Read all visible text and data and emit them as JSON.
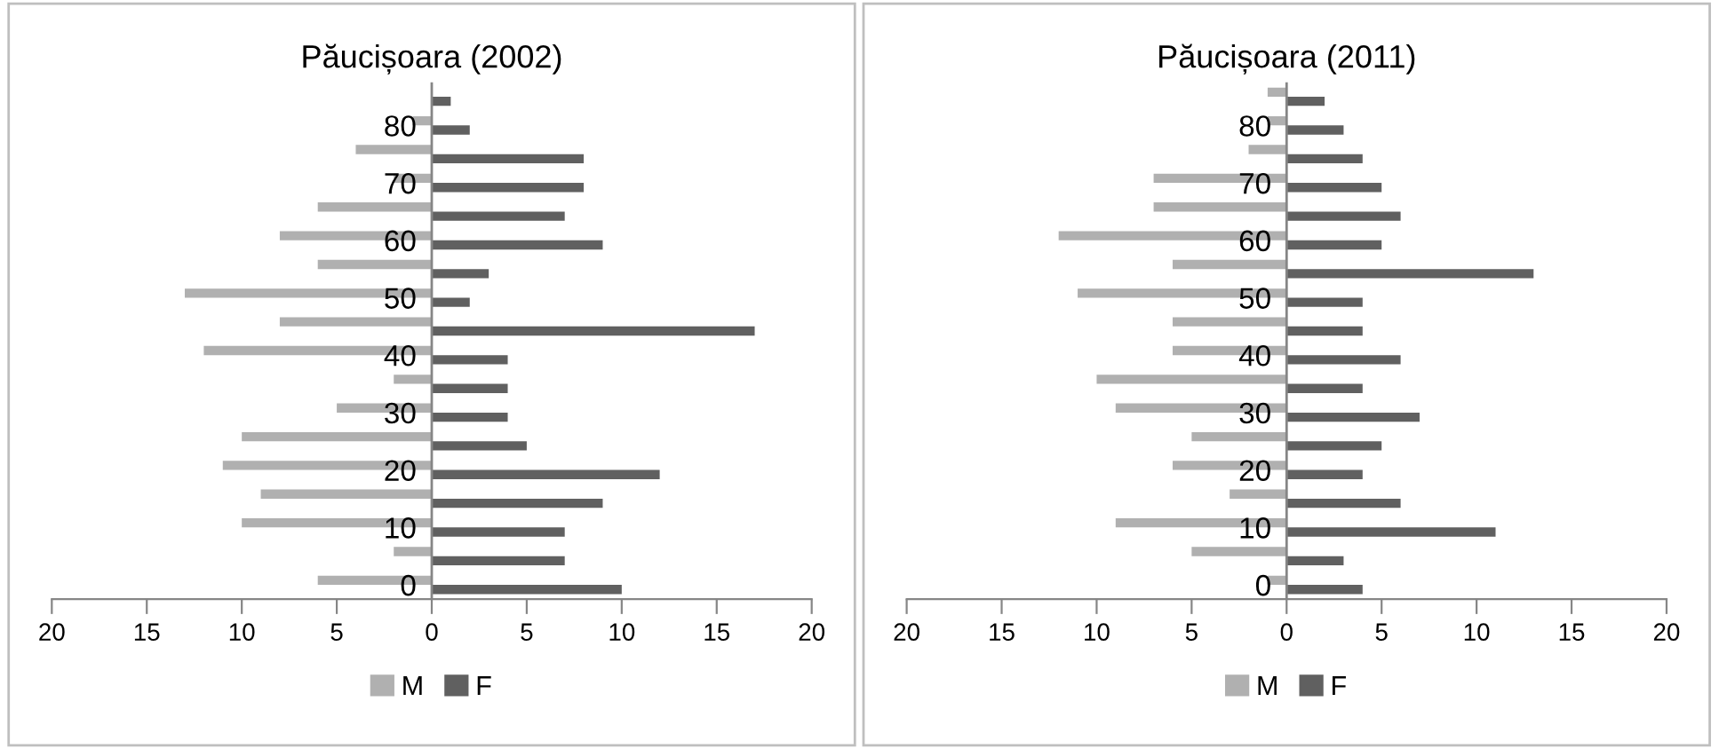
{
  "chart_data": [
    {
      "type": "bar",
      "orientation": "horizontal",
      "title": "Păucișoara (2002)",
      "categories": [
        null,
        "80",
        null,
        "70",
        null,
        "60",
        null,
        "50",
        null,
        "40",
        null,
        "30",
        null,
        "20",
        null,
        "10",
        null,
        "0"
      ],
      "series": [
        {
          "name": "M",
          "color": "#b0b0b0",
          "values": [
            0,
            -1,
            -4,
            -2,
            -6,
            -8,
            -6,
            -13,
            -8,
            -12,
            -2,
            -5,
            -10,
            -11,
            -9,
            -10,
            -2,
            -6
          ]
        },
        {
          "name": "F",
          "color": "#606060",
          "values": [
            1,
            2,
            8,
            8,
            7,
            9,
            3,
            2,
            17,
            4,
            4,
            4,
            5,
            12,
            9,
            7,
            7,
            10
          ]
        }
      ],
      "xlim": [
        -20,
        20
      ],
      "xticks": [
        {
          "value": -20,
          "label": "20"
        },
        {
          "value": -15,
          "label": "15"
        },
        {
          "value": -10,
          "label": "10"
        },
        {
          "value": -5,
          "label": "5"
        },
        0,
        5,
        10,
        15,
        20
      ],
      "grid": false,
      "legend": "bottom"
    },
    {
      "type": "bar",
      "orientation": "horizontal",
      "title": "Păucișoara (2011)",
      "categories": [
        null,
        "80",
        null,
        "70",
        null,
        "60",
        null,
        "50",
        null,
        "40",
        null,
        "30",
        null,
        "20",
        null,
        "10",
        null,
        "0"
      ],
      "series": [
        {
          "name": "M",
          "color": "#b0b0b0",
          "values": [
            -1,
            -1,
            -2,
            -7,
            -7,
            -12,
            -6,
            -11,
            -6,
            -6,
            -10,
            -9,
            -5,
            -6,
            -3,
            -9,
            -5,
            -1
          ]
        },
        {
          "name": "F",
          "color": "#606060",
          "values": [
            2,
            3,
            4,
            5,
            6,
            5,
            13,
            4,
            4,
            6,
            4,
            7,
            5,
            4,
            6,
            11,
            3,
            4
          ]
        }
      ],
      "xlim": [
        -20,
        20
      ],
      "xticks": [
        {
          "value": -20,
          "label": "20"
        },
        {
          "value": -15,
          "label": "15"
        },
        {
          "value": -10,
          "label": "10"
        },
        {
          "value": -5,
          "label": "5"
        },
        0,
        5,
        10,
        15,
        20
      ],
      "grid": false,
      "legend": "bottom"
    }
  ]
}
